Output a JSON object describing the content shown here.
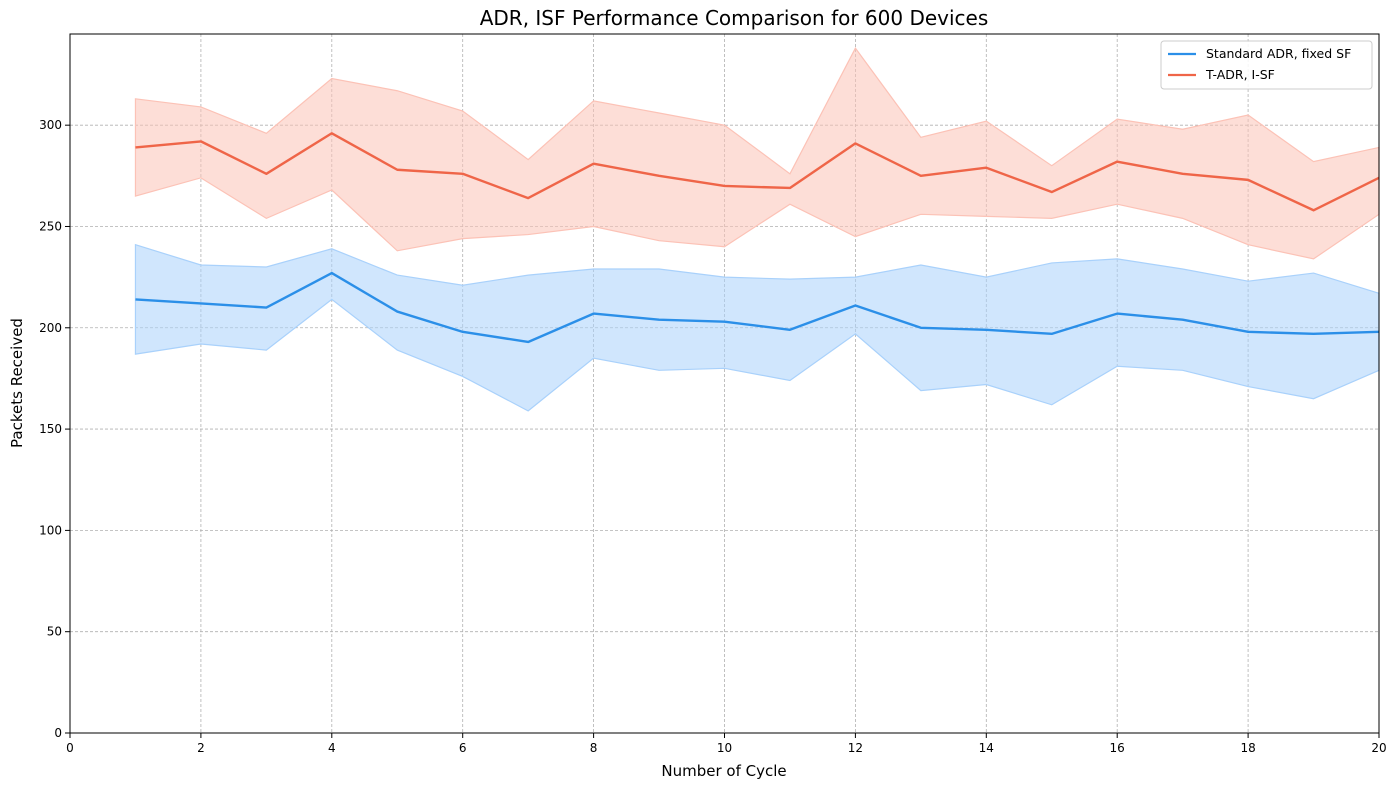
{
  "chart_data": {
    "type": "line",
    "title": "ADR, ISF Performance Comparison for 600 Devices",
    "xlabel": "Number of Cycle",
    "ylabel": "Packets Received",
    "xlim": [
      0,
      20
    ],
    "ylim": [
      0,
      345
    ],
    "xticks": [
      "0",
      "2",
      "4",
      "6",
      "8",
      "10",
      "12",
      "14",
      "16",
      "18",
      "20"
    ],
    "yticks": [
      "0",
      "50",
      "100",
      "150",
      "200",
      "250",
      "300"
    ],
    "grid": true,
    "legend_position": "top-right",
    "x": [
      1,
      2,
      3,
      4,
      5,
      6,
      7,
      8,
      9,
      10,
      11,
      12,
      13,
      14,
      15,
      16,
      17,
      18,
      19,
      20
    ],
    "series": [
      {
        "name": "Standard ADR, fixed SF",
        "color": "#2b8fe8",
        "band_color": "#a9d1fb",
        "values": [
          214,
          212,
          210,
          227,
          208,
          198,
          193,
          207,
          204,
          203,
          199,
          211,
          200,
          199,
          197,
          207,
          204,
          198,
          197,
          198
        ],
        "upper": [
          241,
          231,
          230,
          239,
          226,
          221,
          226,
          229,
          229,
          225,
          224,
          225,
          231,
          225,
          232,
          234,
          229,
          223,
          227,
          217
        ],
        "lower": [
          187,
          192,
          189,
          214,
          189,
          176,
          159,
          185,
          179,
          180,
          174,
          197,
          169,
          172,
          162,
          181,
          179,
          171,
          165,
          179
        ]
      },
      {
        "name": "T-ADR, I-SF",
        "color": "#ef6548",
        "band_color": "#fcc2b6",
        "values": [
          289,
          292,
          276,
          296,
          278,
          276,
          264,
          281,
          275,
          270,
          269,
          291,
          275,
          279,
          267,
          282,
          276,
          273,
          258,
          274
        ],
        "upper": [
          313,
          309,
          296,
          323,
          317,
          307,
          283,
          312,
          306,
          300,
          276,
          338,
          294,
          302,
          280,
          303,
          298,
          305,
          282,
          289
        ],
        "lower": [
          265,
          274,
          254,
          268,
          238,
          244,
          246,
          250,
          243,
          240,
          261,
          245,
          256,
          255,
          254,
          261,
          254,
          241,
          234,
          256
        ]
      }
    ]
  }
}
